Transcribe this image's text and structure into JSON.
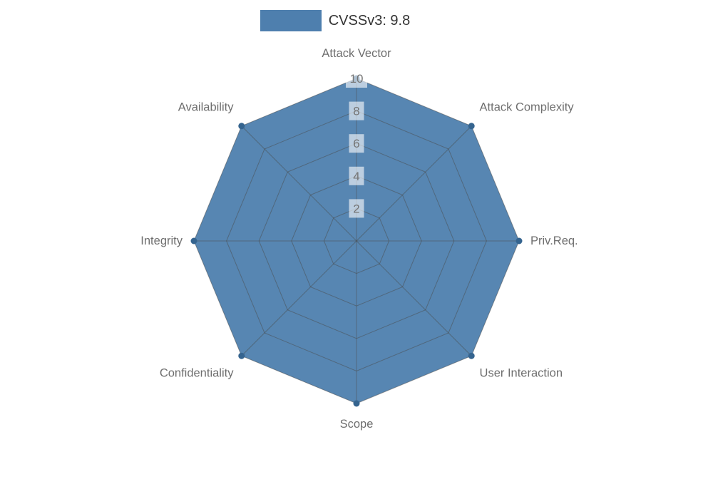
{
  "legend": {
    "label": "CVSSv3: 9.8",
    "swatch_color": "#4e7fae"
  },
  "chart_data": {
    "type": "radar",
    "title": "CVSSv3: 9.8",
    "categories": [
      "Attack Vector",
      "Attack Complexity",
      "Priv.Req.",
      "User Interaction",
      "Scope",
      "Confidentiality",
      "Integrity",
      "Availability"
    ],
    "series": [
      {
        "name": "CVSSv3: 9.8",
        "values": [
          10,
          10,
          10,
          10,
          10,
          10,
          10,
          10
        ]
      }
    ],
    "ticks": [
      2,
      4,
      6,
      8,
      10
    ],
    "rmax": 10,
    "grid": true,
    "legend_position": "top-center",
    "colors": {
      "fill": "#4e7fae",
      "fill_opacity": 0.95,
      "grid": "#4a4a4a",
      "grid_opacity": 0.5,
      "axis_label": "#6e6e6e",
      "tick_label": "#757575",
      "tick_bg": "#ffffff",
      "tick_bg_opacity": 0.6,
      "dot": "#35648f"
    }
  }
}
